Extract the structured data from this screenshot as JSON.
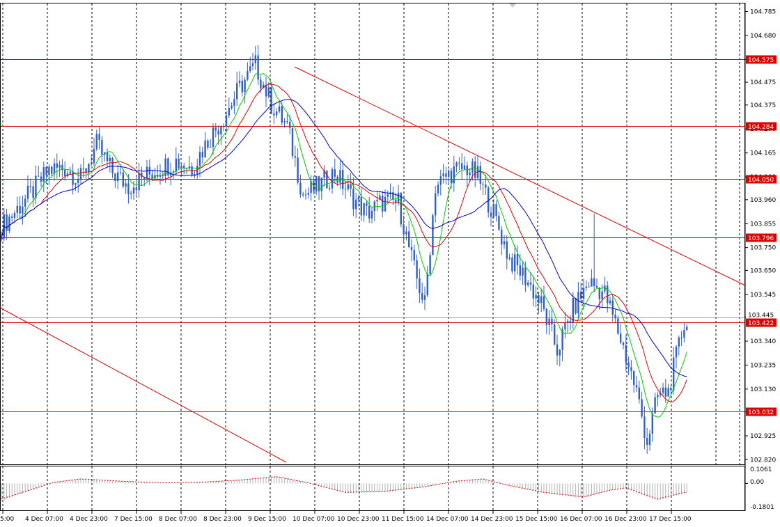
{
  "chart_data": [
    {
      "type": "candlestick",
      "title": "",
      "price_axis_ticks": [
        "104.785",
        "104.680",
        "104.575",
        "104.475",
        "104.375",
        "104.270",
        "104.165",
        "104.060",
        "103.960",
        "103.855",
        "103.750",
        "103.650",
        "103.545",
        "103.445",
        "103.340",
        "103.235",
        "103.130",
        "103.030",
        "102.925",
        "102.820"
      ],
      "time_axis_ticks": [
        "5:00",
        "4 Dec 07:00",
        "4 Dec 23:00",
        "7 Dec 15:00",
        "8 Dec 07:00",
        "8 Dec 23:00",
        "9 Dec 15:00",
        "10 Dec 07:00",
        "10 Dec 23:00",
        "11 Dec 15:00",
        "14 Dec 07:00",
        "14 Dec 23:00",
        "15 Dec 15:00",
        "16 Dec 07:00",
        "16 Dec 23:00",
        "17 Dec 15:00"
      ],
      "ylim": [
        102.8,
        104.82
      ],
      "grid": true,
      "horizontal_levels": [
        {
          "label": "104.575",
          "value": 104.575
        },
        {
          "label": "104.284",
          "value": 104.284
        },
        {
          "label": "104.050",
          "value": 104.05
        },
        {
          "label": "103.796",
          "value": 103.796
        },
        {
          "label": "103.422",
          "value": 103.422
        },
        {
          "label": "103.032",
          "value": 103.032
        }
      ],
      "current_price": {
        "label": "103.445",
        "value": 103.445
      },
      "level_color": "#dd0000",
      "candle_color": "#2f5fc8",
      "close_path": [
        {
          "bar": 0,
          "price": 103.84
        },
        {
          "bar": 6,
          "price": 103.92
        },
        {
          "bar": 12,
          "price": 104.0
        },
        {
          "bar": 18,
          "price": 104.09
        },
        {
          "bar": 24,
          "price": 104.1
        },
        {
          "bar": 30,
          "price": 104.05
        },
        {
          "bar": 36,
          "price": 104.2
        },
        {
          "bar": 42,
          "price": 104.08
        },
        {
          "bar": 48,
          "price": 104.02
        },
        {
          "bar": 54,
          "price": 104.06
        },
        {
          "bar": 60,
          "price": 104.1
        },
        {
          "bar": 66,
          "price": 104.13
        },
        {
          "bar": 72,
          "price": 104.1
        },
        {
          "bar": 78,
          "price": 104.22
        },
        {
          "bar": 84,
          "price": 104.32
        },
        {
          "bar": 90,
          "price": 104.45
        },
        {
          "bar": 96,
          "price": 104.55
        },
        {
          "bar": 102,
          "price": 104.38
        },
        {
          "bar": 108,
          "price": 104.28
        },
        {
          "bar": 114,
          "price": 103.98
        },
        {
          "bar": 120,
          "price": 104.02
        },
        {
          "bar": 126,
          "price": 104.08
        },
        {
          "bar": 132,
          "price": 103.98
        },
        {
          "bar": 138,
          "price": 103.9
        },
        {
          "bar": 144,
          "price": 103.95
        },
        {
          "bar": 150,
          "price": 103.95
        },
        {
          "bar": 156,
          "price": 103.65
        },
        {
          "bar": 160,
          "price": 103.5
        },
        {
          "bar": 164,
          "price": 104.02
        },
        {
          "bar": 170,
          "price": 104.08
        },
        {
          "bar": 176,
          "price": 104.1
        },
        {
          "bar": 180,
          "price": 104.06
        },
        {
          "bar": 186,
          "price": 103.9
        },
        {
          "bar": 192,
          "price": 103.7
        },
        {
          "bar": 198,
          "price": 103.62
        },
        {
          "bar": 204,
          "price": 103.5
        },
        {
          "bar": 210,
          "price": 103.3
        },
        {
          "bar": 216,
          "price": 103.48
        },
        {
          "bar": 222,
          "price": 103.6
        },
        {
          "bar": 228,
          "price": 103.55
        },
        {
          "bar": 234,
          "price": 103.35
        },
        {
          "bar": 240,
          "price": 103.12
        },
        {
          "bar": 244,
          "price": 102.9
        },
        {
          "bar": 248,
          "price": 103.1
        },
        {
          "bar": 252,
          "price": 103.12
        },
        {
          "bar": 258,
          "price": 103.42
        }
      ],
      "oscillator": {
        "ticks": [
          "0.1061",
          "0.00",
          "-0.1801"
        ],
        "ylim": [
          -0.2,
          0.12
        ],
        "values": [
          {
            "bar": 0,
            "value": -0.14
          },
          {
            "bar": 20,
            "value": 0.01
          },
          {
            "bar": 30,
            "value": 0.04
          },
          {
            "bar": 45,
            "value": 0.02
          },
          {
            "bar": 60,
            "value": 0.005
          },
          {
            "bar": 75,
            "value": 0.01
          },
          {
            "bar": 90,
            "value": 0.03
          },
          {
            "bar": 104,
            "value": 0.06
          },
          {
            "bar": 115,
            "value": 0.01
          },
          {
            "bar": 130,
            "value": -0.08
          },
          {
            "bar": 145,
            "value": -0.07
          },
          {
            "bar": 160,
            "value": -0.03
          },
          {
            "bar": 172,
            "value": 0.02
          },
          {
            "bar": 182,
            "value": 0.04
          },
          {
            "bar": 192,
            "value": -0.02
          },
          {
            "bar": 205,
            "value": -0.08
          },
          {
            "bar": 220,
            "value": -0.12
          },
          {
            "bar": 230,
            "value": -0.06
          },
          {
            "bar": 236,
            "value": -0.04
          },
          {
            "bar": 248,
            "value": -0.14
          },
          {
            "bar": 258,
            "value": -0.08
          }
        ]
      }
    }
  ]
}
